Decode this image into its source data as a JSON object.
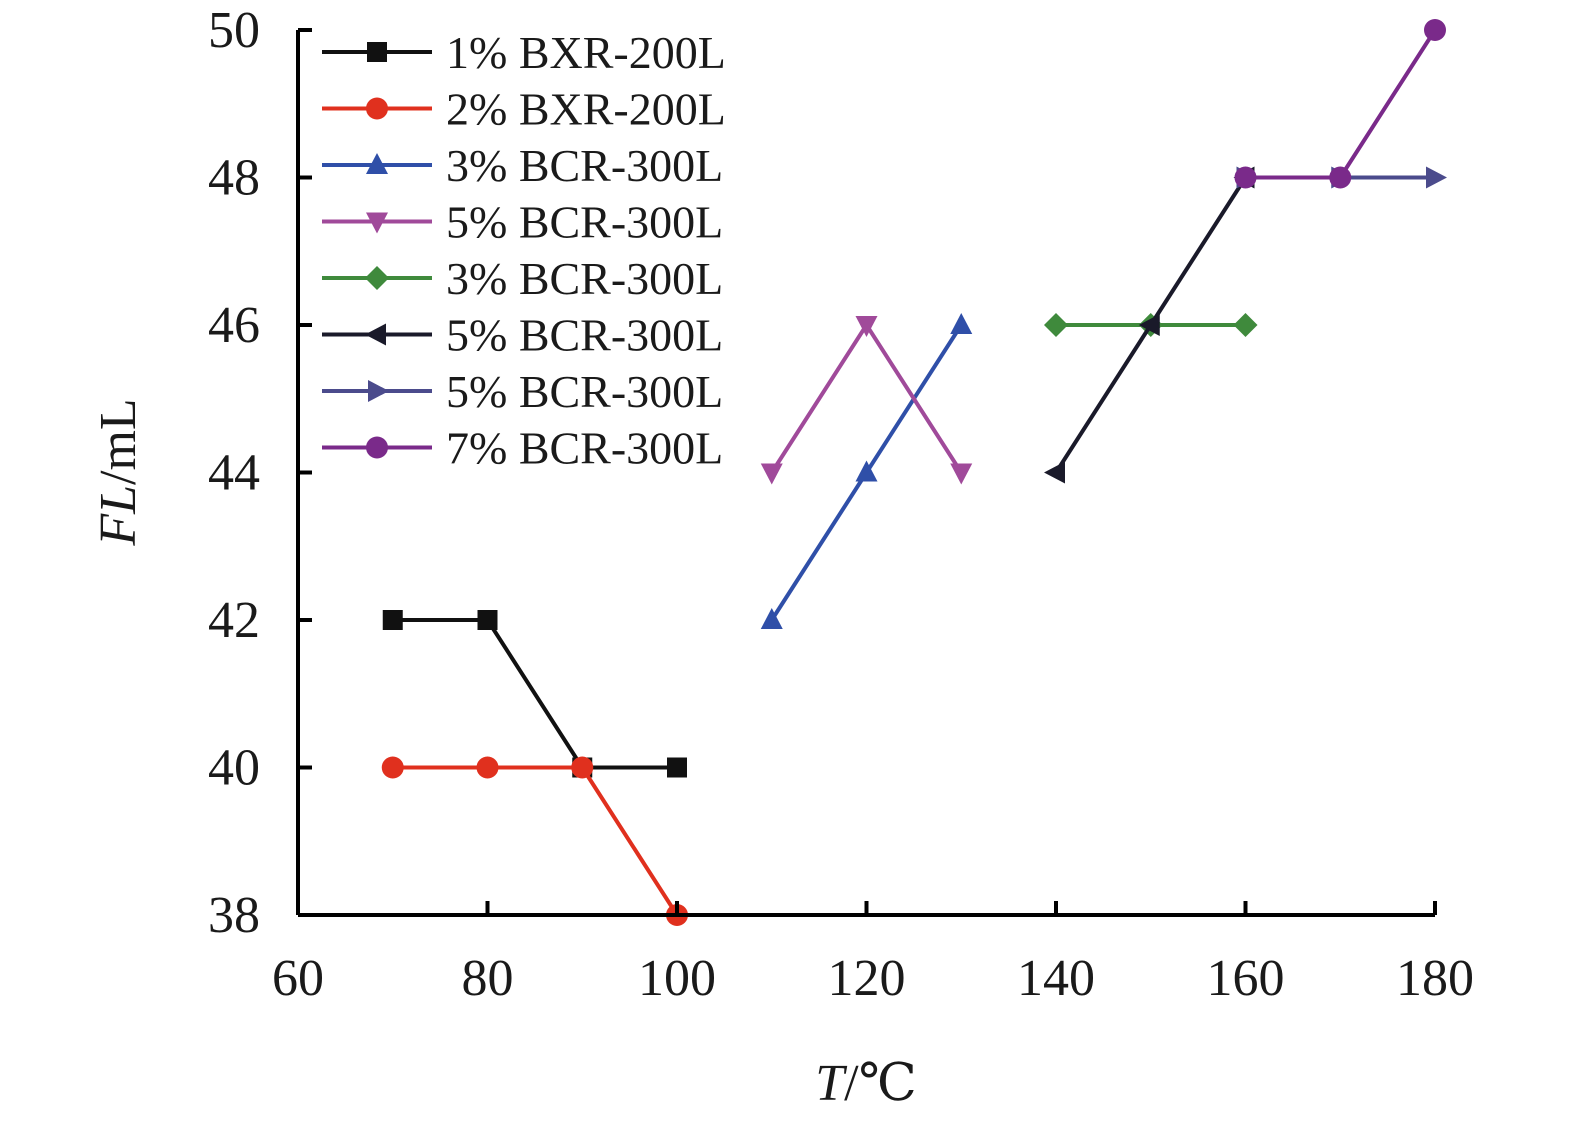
{
  "chart_data": {
    "type": "line",
    "xlabel": {
      "var": "T",
      "unit": "/℃"
    },
    "ylabel": {
      "var": "FL",
      "unit": "/mL"
    },
    "xlim": [
      60,
      180
    ],
    "ylim": [
      38,
      50
    ],
    "xticks": [
      60,
      80,
      100,
      120,
      140,
      160,
      180
    ],
    "yticks": [
      38,
      40,
      42,
      44,
      46,
      48,
      50
    ],
    "grid": false,
    "legend_position": "top-left",
    "series": [
      {
        "name": "1% BXR-200L",
        "color": "#111111",
        "marker": "square",
        "x": [
          70,
          80,
          90,
          100
        ],
        "y": [
          42,
          42,
          40,
          40
        ]
      },
      {
        "name": "2% BXR-200L",
        "color": "#e0301e",
        "marker": "circle",
        "x": [
          70,
          80,
          90,
          100
        ],
        "y": [
          40,
          40,
          40,
          38
        ]
      },
      {
        "name": "3% BCR-300L",
        "color": "#2f4fa8",
        "marker": "triangle-up",
        "x": [
          110,
          120,
          130
        ],
        "y": [
          42,
          44,
          46
        ]
      },
      {
        "name": "5% BCR-300L",
        "color": "#a04a9a",
        "marker": "triangle-down",
        "x": [
          110,
          120,
          130
        ],
        "y": [
          44,
          46,
          44
        ]
      },
      {
        "name": "3% BCR-300L",
        "color": "#3f8a3c",
        "marker": "diamond",
        "x": [
          140,
          150,
          160
        ],
        "y": [
          46,
          46,
          46
        ]
      },
      {
        "name": "5% BCR-300L",
        "color": "#1a1a2a",
        "marker": "triangle-left",
        "x": [
          140,
          150,
          160
        ],
        "y": [
          44,
          46,
          48
        ]
      },
      {
        "name": "5% BCR-300L",
        "color": "#4b4b8c",
        "marker": "triangle-right",
        "x": [
          160,
          170,
          180
        ],
        "y": [
          48,
          48,
          48
        ]
      },
      {
        "name": "7% BCR-300L",
        "color": "#7a2a8a",
        "marker": "circle",
        "x": [
          160,
          170,
          180
        ],
        "y": [
          48,
          48,
          50
        ]
      }
    ]
  }
}
